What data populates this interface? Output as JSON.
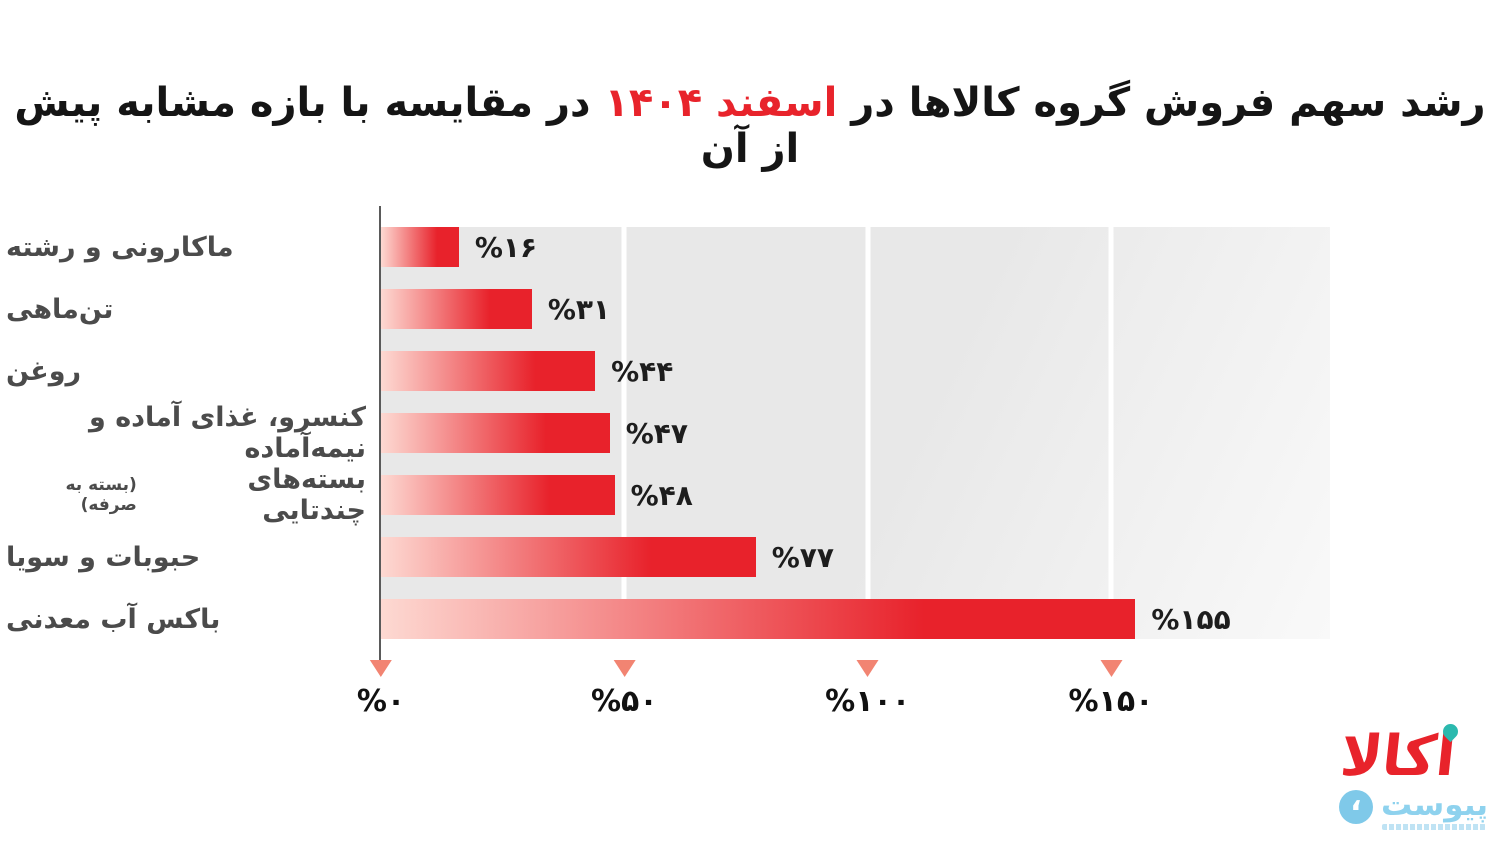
{
  "title": {
    "part1": "رشد سهم فروش گروه کالاها در ",
    "highlight": "اسفند ۱۴۰۴",
    "part2": " در مقایسه با بازه مشابه پیش از آن"
  },
  "chart_data": {
    "type": "bar",
    "orientation": "horizontal",
    "title": "رشد سهم فروش گروه کالاها در اسفند ۱۴۰۴ در مقایسه با بازه مشابه پیش از آن",
    "categories": [
      "ماکارونی و رشته",
      "تن‌ماهی",
      "روغن",
      "کنسرو، غذای آماده و نیمه‌آماده",
      "بسته‌های چندتایی",
      "حبوبات و سویا",
      "باکس آب معدنی"
    ],
    "category_note": "(بسته به صرفه)",
    "category_note_index": 4,
    "values": [
      16,
      31,
      44,
      47,
      48,
      77,
      155
    ],
    "value_labels": [
      "%۱۶",
      "%۳۱",
      "%۴۴",
      "%۴۷",
      "%۴۸",
      "%۷۷",
      "%۱۵۵"
    ],
    "axis": {
      "min": 0,
      "max": 195,
      "ticks": [
        0,
        50,
        100,
        150
      ],
      "tick_labels": [
        "%۰",
        "%۵۰",
        "%۱۰۰",
        "%۱۵۰"
      ]
    },
    "grid": "vertical-white-lines",
    "legend": "none",
    "colors": {
      "bar_gradient_start": "#fdd9d2",
      "bar_gradient_end": "#e8222b",
      "plot_background": "#e8e8e8",
      "tick_marker": "#f28472",
      "title_highlight": "#e8232b",
      "category_text": "#4b4b4b",
      "value_text": "#1d1d1d"
    }
  },
  "logo": {
    "brand": "اکالا",
    "sub_brand": "پیوست",
    "icon_glyph": "،",
    "brand_color": "#e8232b",
    "accent_dot_color": "#2bb9ae",
    "sub_brand_color": "#8ed2ee"
  }
}
